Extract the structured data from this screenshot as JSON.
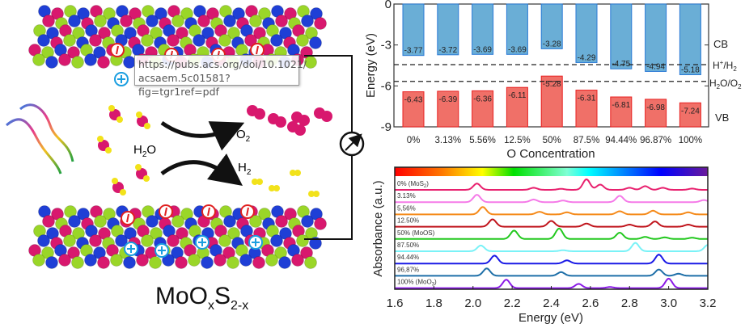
{
  "diagram": {
    "material_label": {
      "base": "MoO",
      "sub1": "x",
      "mid": "S",
      "sub2": "2-x"
    },
    "water_label": {
      "base": "H",
      "sub": "2",
      "tail": "O"
    },
    "oxygen_label": {
      "base": "O",
      "sub": "2"
    },
    "hydrogen_label": {
      "base": "H",
      "sub": "2"
    },
    "tooltip": [
      "https://pubs.acs.org/doi/10.1021/",
      "acsaem.5c01581?fig=tgr1ref=pdf"
    ],
    "colors": {
      "mo": "#1f3fd6",
      "s": "#9ad628",
      "o": "#d8186e",
      "h": "#f2e21a",
      "electron": "#e02020",
      "hole": "#1a9ee0"
    }
  },
  "chart_data": [
    {
      "type": "bar",
      "title": "",
      "xlabel": "O Concentration",
      "ylabel": "Energy (eV)",
      "ylim": [
        -9,
        0
      ],
      "yticks": [
        "0",
        "-3",
        "-6",
        "-9"
      ],
      "categories": [
        "0%",
        "3.13%",
        "5.56%",
        "12.5%",
        "50%",
        "87.5%",
        "94.44%",
        "96.87%",
        "100%"
      ],
      "series": [
        {
          "name": "CB",
          "color": "#6aaed6",
          "edge": "#2a7ad6",
          "values": [
            -3.77,
            -3.72,
            -3.69,
            -3.69,
            -3.28,
            -4.29,
            -4.75,
            -4.94,
            -5.18
          ]
        },
        {
          "name": "VB",
          "color": "#f07068",
          "edge": "#e82020",
          "values": [
            -6.43,
            -6.39,
            -6.36,
            -6.11,
            -5.28,
            -6.31,
            -6.81,
            -6.98,
            -7.24
          ]
        }
      ],
      "labels_right": {
        "cb": "CB",
        "vb": "VB",
        "h_plus_h2": {
          "a": "H",
          "sup": "+",
          "b": "/H",
          "sub": "2"
        },
        "h2o_o2": {
          "a": "H",
          "sub1": "2",
          "b": "O/O",
          "sub2": "2"
        }
      },
      "reference_lines": [
        {
          "name": "H+/H2",
          "value": -4.44
        },
        {
          "name": "H2O/O2",
          "value": -5.67
        }
      ]
    },
    {
      "type": "line",
      "title": "",
      "xlabel": "Energy (eV)",
      "ylabel": "Absorbance (a.u.)",
      "xlim": [
        1.6,
        3.2
      ],
      "xticks": [
        "1.6",
        "1.8",
        "2.0",
        "2.2",
        "2.4",
        "2.6",
        "2.8",
        "3.0",
        "3.2"
      ],
      "series": [
        {
          "name": "0% (MoS2)",
          "label": "0% (MoS",
          "sub": "2",
          "tail": ")",
          "color": "#e8206e",
          "peaks": [
            [
              2.02,
              0.6
            ],
            [
              2.31,
              0.2
            ],
            [
              2.45,
              0.1
            ],
            [
              2.58,
              1
            ],
            [
              2.65,
              0.5
            ],
            [
              2.8,
              0.2
            ],
            [
              2.88,
              0.35
            ],
            [
              2.97,
              0.2
            ],
            [
              3.12,
              0.12
            ]
          ]
        },
        {
          "name": "3.13%",
          "label": "3.13%",
          "color": "#f57ae8",
          "peaks": [
            [
              2.02,
              0.7
            ],
            [
              2.31,
              0.25
            ],
            [
              2.46,
              0.15
            ],
            [
              2.75,
              0.6
            ],
            [
              3.18,
              0.2
            ]
          ]
        },
        {
          "name": "5.56%",
          "label": "5,56%",
          "color": "#f58a1a",
          "peaks": [
            [
              2.05,
              0.7
            ],
            [
              2.34,
              0.25
            ],
            [
              2.48,
              0.2
            ],
            [
              2.75,
              0.3
            ],
            [
              2.92,
              0.35
            ],
            [
              3.1,
              0.2
            ]
          ]
        },
        {
          "name": "12.50%",
          "label": "12.50%",
          "color": "#c0141c",
          "peaks": [
            [
              2.1,
              0.7
            ],
            [
              2.4,
              0.55
            ],
            [
              2.58,
              0.3
            ],
            [
              2.8,
              0.2
            ],
            [
              2.93,
              0.5
            ],
            [
              3.1,
              0.2
            ]
          ]
        },
        {
          "name": "50% (MoOS)",
          "label": "50% (MoOS)",
          "color": "#22c81e",
          "peaks": [
            [
              2.21,
              0.8
            ],
            [
              2.44,
              1
            ],
            [
              2.75,
              0.6
            ],
            [
              2.88,
              0.2
            ],
            [
              2.98,
              0.15
            ],
            [
              3.12,
              0.12
            ]
          ]
        },
        {
          "name": "87.50%",
          "label": "87.50%",
          "color": "#7af2f7",
          "peaks": [
            [
              2.04,
              0.55
            ],
            [
              2.46,
              0.1
            ],
            [
              2.83,
              0.8
            ],
            [
              3.2,
              0.6
            ]
          ]
        },
        {
          "name": "94.44%",
          "label": "94.44%",
          "color": "#1a1ae6",
          "peaks": [
            [
              2.11,
              0.75
            ],
            [
              2.48,
              0.3
            ],
            [
              2.95,
              0.85
            ]
          ]
        },
        {
          "name": "96.87%",
          "label": "96,87%",
          "color": "#1e6fa8",
          "peaks": [
            [
              2.07,
              0.7
            ],
            [
              2.45,
              0.35
            ],
            [
              2.95,
              0.6
            ],
            [
              3.05,
              0.2
            ]
          ]
        },
        {
          "name": "100% (MoO3)",
          "label": "100% (MoO",
          "sub": "3",
          "tail": ")",
          "color": "#8a1ae6",
          "peaks": [
            [
              2.17,
              0.8
            ],
            [
              2.54,
              0.4
            ],
            [
              2.7,
              0.1
            ],
            [
              3.0,
              0.9
            ]
          ]
        }
      ]
    }
  ]
}
